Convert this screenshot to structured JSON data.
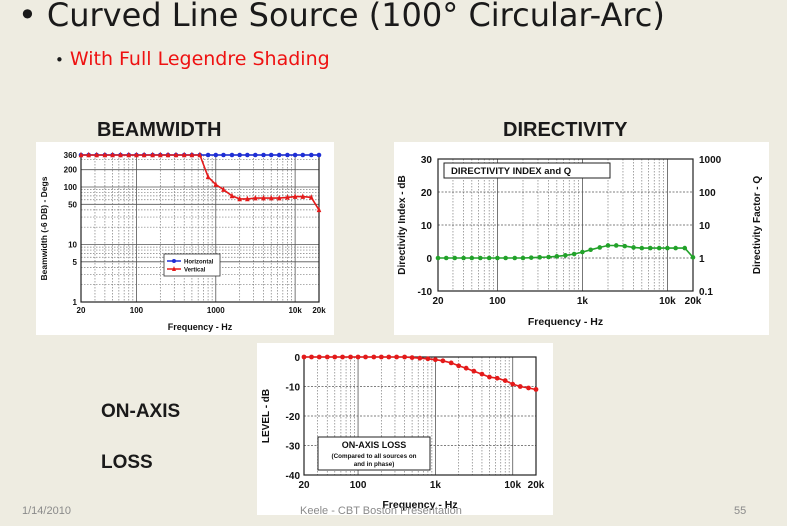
{
  "slide": {
    "title": "Curved Line Source (100° Circular-Arc)",
    "bullet": "•",
    "subtitle": "With Full Legendre Shading",
    "beamwidth_heading": "BEAMWIDTH",
    "directivity_heading": "DIRECTIVITY",
    "onaxis_label_1": "ON-AXIS",
    "onaxis_label_2": "LOSS",
    "footer_date": "1/14/2010",
    "footer_center": "Keele - CBT Boston Presentation",
    "footer_page": "55"
  },
  "chart_data": [
    {
      "type": "line",
      "id": "beamwidth",
      "title": "",
      "xlabel": "Frequency - Hz",
      "ylabel": "Beamwidth (-6 DB) - Degs",
      "x_scale": "log",
      "y_scale": "log",
      "xlim": [
        20,
        20000
      ],
      "ylim": [
        1,
        360
      ],
      "xticks": [
        20,
        100,
        1000,
        10000,
        20000
      ],
      "xtick_labels": [
        "20",
        "100",
        "1000",
        "10k",
        "20k"
      ],
      "yticks": [
        1,
        5,
        10,
        50,
        100,
        200,
        360
      ],
      "ytick_labels": [
        "1",
        "5",
        "10",
        "50",
        "100",
        "200",
        "360"
      ],
      "grid": true,
      "legend_position": "center",
      "series": [
        {
          "name": "Horizontal",
          "color": "#1f2fd6",
          "marker": "circle",
          "x": [
            20,
            25,
            31.5,
            40,
            50,
            63,
            80,
            100,
            125,
            160,
            200,
            250,
            315,
            400,
            500,
            630,
            800,
            1000,
            1250,
            1600,
            2000,
            2500,
            3150,
            4000,
            5000,
            6300,
            8000,
            10000,
            12500,
            16000,
            20000
          ],
          "y": [
            360,
            360,
            360,
            360,
            360,
            360,
            360,
            360,
            360,
            360,
            360,
            360,
            360,
            360,
            360,
            360,
            360,
            360,
            360,
            360,
            360,
            360,
            360,
            360,
            360,
            360,
            360,
            360,
            360,
            360,
            360
          ]
        },
        {
          "name": "Vertical",
          "color": "#e41a1a",
          "marker": "triangle",
          "x": [
            20,
            25,
            31.5,
            40,
            50,
            63,
            80,
            100,
            125,
            160,
            200,
            250,
            315,
            400,
            500,
            630,
            800,
            1000,
            1250,
            1600,
            2000,
            2500,
            3150,
            4000,
            5000,
            6300,
            8000,
            10000,
            12500,
            16000,
            20000
          ],
          "y": [
            360,
            360,
            360,
            360,
            360,
            360,
            360,
            360,
            360,
            360,
            360,
            360,
            360,
            360,
            360,
            360,
            150,
            110,
            90,
            70,
            62,
            62,
            64,
            64,
            64,
            64,
            66,
            68,
            68,
            66,
            40
          ]
        }
      ]
    },
    {
      "type": "line",
      "id": "directivity",
      "title": "DIRECTIVITY INDEX and Q",
      "xlabel": "Frequency - Hz",
      "ylabel": "Directivity Index - dB",
      "ylabel_right": "Directivity Factor - Q",
      "x_scale": "log",
      "xlim": [
        20,
        20000
      ],
      "ylim": [
        -10,
        30
      ],
      "xticks": [
        20,
        100,
        1000,
        10000,
        20000
      ],
      "xtick_labels": [
        "20",
        "100",
        "1k",
        "10k",
        "20k"
      ],
      "yticks": [
        -10,
        0,
        10,
        20,
        30
      ],
      "ytick_labels": [
        "-10",
        "0",
        "10",
        "20",
        "30"
      ],
      "right_tick_labels": [
        "0.1",
        "1",
        "10",
        "100",
        "1000"
      ],
      "grid": true,
      "series": [
        {
          "name": "",
          "color": "#22a22a",
          "marker": "circle",
          "x": [
            20,
            25,
            31.5,
            40,
            50,
            63,
            80,
            100,
            125,
            160,
            200,
            250,
            315,
            400,
            500,
            630,
            800,
            1000,
            1250,
            1600,
            2000,
            2500,
            3150,
            4000,
            5000,
            6300,
            8000,
            10000,
            12500,
            16000,
            20000
          ],
          "y": [
            0,
            0,
            0,
            0,
            0,
            0,
            0,
            0,
            0,
            0,
            0,
            0.1,
            0.2,
            0.3,
            0.5,
            0.8,
            1.2,
            1.8,
            2.5,
            3.2,
            3.8,
            3.8,
            3.6,
            3.2,
            3.0,
            3.0,
            3.0,
            3.0,
            3.0,
            3.0,
            0.2
          ]
        }
      ]
    },
    {
      "type": "line",
      "id": "onaxis",
      "title": "ON-AXIS LOSS",
      "annotation": "(Compared to all sources on and in phase)",
      "xlabel": "Frequency - Hz",
      "ylabel": "LEVEL - dB",
      "x_scale": "log",
      "xlim": [
        20,
        20000
      ],
      "ylim": [
        -40,
        0
      ],
      "xticks": [
        20,
        100,
        1000,
        10000,
        20000
      ],
      "xtick_labels": [
        "20",
        "100",
        "1k",
        "10k",
        "20k"
      ],
      "yticks": [
        -40,
        -30,
        -20,
        -10,
        0
      ],
      "ytick_labels": [
        "-40",
        "-30",
        "-20",
        "-10",
        "0"
      ],
      "grid": true,
      "series": [
        {
          "name": "",
          "color": "#e41a1a",
          "marker": "circle",
          "x": [
            20,
            25,
            31.5,
            40,
            50,
            63,
            80,
            100,
            125,
            160,
            200,
            250,
            315,
            400,
            500,
            630,
            800,
            1000,
            1250,
            1600,
            2000,
            2500,
            3150,
            4000,
            5000,
            6300,
            8000,
            10000,
            12500,
            16000,
            20000
          ],
          "y": [
            0,
            0,
            0,
            0,
            0,
            0,
            0,
            0,
            0,
            0,
            0,
            0,
            0,
            0,
            -0.2,
            -0.4,
            -0.6,
            -0.9,
            -1.3,
            -2,
            -3,
            -3.8,
            -4.8,
            -5.8,
            -6.8,
            -7.2,
            -8,
            -9.2,
            -10,
            -10.5,
            -11
          ]
        }
      ]
    }
  ]
}
